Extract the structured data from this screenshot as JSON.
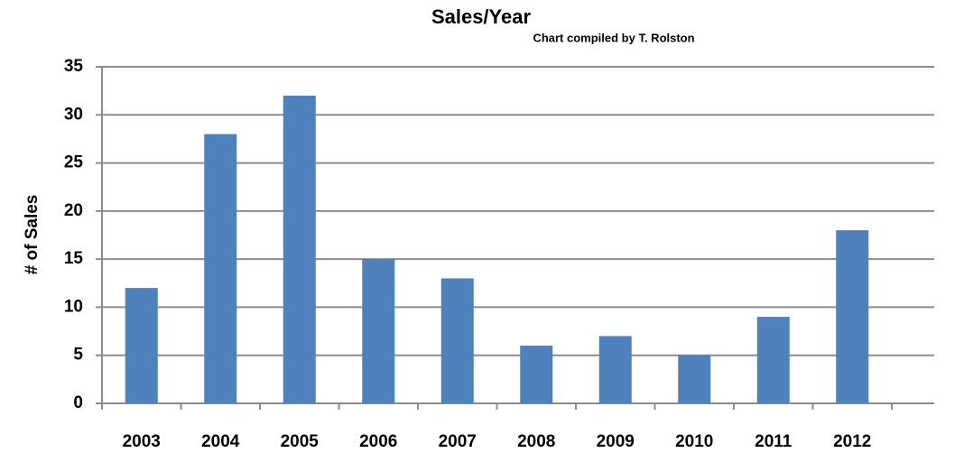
{
  "chart_data": {
    "type": "bar",
    "title": "Sales/Year",
    "subtitle": "Chart compiled by T. Rolston",
    "y_label": "# of Sales",
    "categories": [
      "2003",
      "2004",
      "2005",
      "2006",
      "2007",
      "2008",
      "2009",
      "2010",
      "2011",
      "2012"
    ],
    "values": [
      12,
      28,
      32,
      15,
      13,
      6,
      7,
      5,
      9,
      18
    ],
    "color": "#4f81bd",
    "ylim": [
      0,
      35
    ],
    "yticks": [
      0,
      5,
      10,
      15,
      20,
      25,
      30,
      35
    ],
    "grid": true
  }
}
